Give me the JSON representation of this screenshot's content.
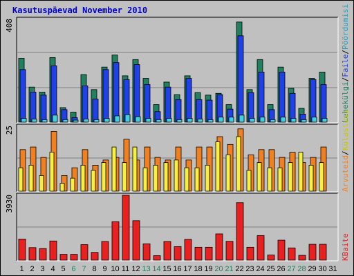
{
  "title": "Kasutuspäevad November 2010",
  "colors": {
    "pageviews": "#208060",
    "files": "#2040e8",
    "hits_bar": "#40d0e0",
    "visits": "#f08020",
    "sites": "#f8f040",
    "kbytes": "#e82020",
    "weekend": "#208060",
    "weekday": "#000000"
  },
  "legend_right_top": [
    "Pöördumisi",
    "/",
    "Faile",
    "/",
    "Lehekülgi"
  ],
  "legend_right_mid": [
    "Külastusi",
    "/",
    "Arvuteid"
  ],
  "legend_right_bot": "KBaite",
  "chart_data": {
    "type": "bar",
    "title": "Kasutuspäevad November 2010",
    "categories": [
      "1",
      "2",
      "3",
      "4",
      "5",
      "6",
      "7",
      "8",
      "9",
      "10",
      "11",
      "12",
      "13",
      "14",
      "15",
      "16",
      "17",
      "18",
      "19",
      "20",
      "21",
      "22",
      "23",
      "24",
      "25",
      "26",
      "27",
      "28",
      "29",
      "30",
      "31"
    ],
    "weekend_days": [
      "6",
      "7",
      "13",
      "14",
      "20",
      "21",
      "27",
      "28"
    ],
    "panels": [
      {
        "name": "hits_files_pages",
        "ymax_label": "408",
        "ylim": [
          0,
          408
        ],
        "series": [
          {
            "name": "Pöördumisi",
            "values": [
              255,
              140,
              120,
              258,
              58,
              40,
              190,
              130,
              220,
              268,
              185,
              250,
              175,
              70,
              160,
              110,
              185,
              118,
              108,
              115,
              70,
              400,
              130,
              250,
              70,
              220,
              135,
              55,
              175,
              200,
              0
            ]
          },
          {
            "name": "Faile",
            "values": [
              210,
              120,
              108,
              225,
              50,
              18,
              145,
              92,
              210,
              238,
              170,
              230,
              150,
              42,
              140,
              90,
              175,
              90,
              88,
              110,
              52,
              345,
              118,
              200,
              50,
              200,
              115,
              32,
              170,
              150,
              0
            ]
          },
          {
            "name": "Lehekülgi",
            "values": [
              15,
              12,
              10,
              28,
              10,
              8,
              12,
              10,
              15,
              25,
              30,
              22,
              15,
              10,
              15,
              10,
              15,
              12,
              10,
              20,
              20,
              28,
              15,
              20,
              10,
              20,
              15,
              10,
              20,
              15,
              0
            ]
          }
        ]
      },
      {
        "name": "visits_sites",
        "ymax_label": "25",
        "ylim": [
          0,
          25
        ],
        "series": [
          {
            "name": "Külastusi",
            "values": [
              16,
              17,
              13,
              23,
              6,
              9,
              16,
              10,
              12,
              13,
              20,
              12,
              17,
              13,
              12,
              17,
              12,
              17,
              17,
              21,
              18,
              24,
              14,
              16,
              16,
              13,
              15,
              11,
              13,
              17,
              0
            ]
          },
          {
            "name": "Arvuteid",
            "values": [
              9,
              10,
              6,
              15,
              3,
              5,
              10,
              8,
              11,
              17,
              11,
              17,
              9,
              10,
              11,
              12,
              9,
              9,
              10,
              19,
              14,
              21,
              8,
              11,
              9,
              9,
              11,
              15,
              10,
              11,
              0
            ]
          }
        ]
      },
      {
        "name": "kbytes",
        "ymax_label": "3930",
        "ylim": [
          0,
          3930
        ],
        "series": [
          {
            "name": "KBaite",
            "values": [
              1280,
              760,
              700,
              1160,
              350,
              350,
              940,
              470,
              1130,
              2330,
              3930,
              2390,
              990,
              270,
              1130,
              820,
              1260,
              780,
              780,
              1590,
              1140,
              3480,
              780,
              1490,
              310,
              1210,
              740,
              290,
              960,
              960,
              0
            ]
          }
        ]
      }
    ]
  }
}
